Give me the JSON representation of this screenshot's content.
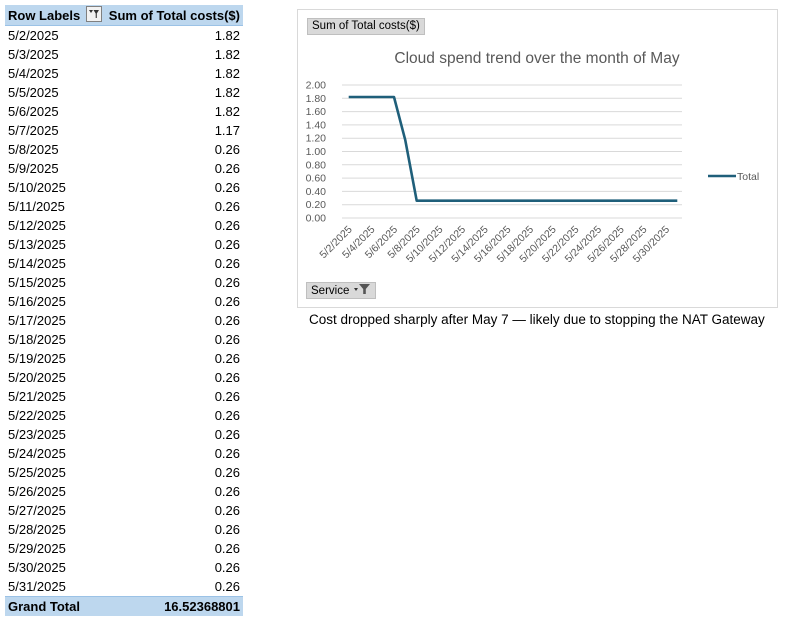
{
  "pivot": {
    "header_row_labels": "Row Labels",
    "header_sum": "Sum of Total costs($)",
    "filter_icon": "filter-dropdown-icon",
    "rows": [
      {
        "date": "5/2/2025",
        "value": "1.82"
      },
      {
        "date": "5/3/2025",
        "value": "1.82"
      },
      {
        "date": "5/4/2025",
        "value": "1.82"
      },
      {
        "date": "5/5/2025",
        "value": "1.82"
      },
      {
        "date": "5/6/2025",
        "value": "1.82"
      },
      {
        "date": "5/7/2025",
        "value": "1.17"
      },
      {
        "date": "5/8/2025",
        "value": "0.26"
      },
      {
        "date": "5/9/2025",
        "value": "0.26"
      },
      {
        "date": "5/10/2025",
        "value": "0.26"
      },
      {
        "date": "5/11/2025",
        "value": "0.26"
      },
      {
        "date": "5/12/2025",
        "value": "0.26"
      },
      {
        "date": "5/13/2025",
        "value": "0.26"
      },
      {
        "date": "5/14/2025",
        "value": "0.26"
      },
      {
        "date": "5/15/2025",
        "value": "0.26"
      },
      {
        "date": "5/16/2025",
        "value": "0.26"
      },
      {
        "date": "5/17/2025",
        "value": "0.26"
      },
      {
        "date": "5/18/2025",
        "value": "0.26"
      },
      {
        "date": "5/19/2025",
        "value": "0.26"
      },
      {
        "date": "5/20/2025",
        "value": "0.26"
      },
      {
        "date": "5/21/2025",
        "value": "0.26"
      },
      {
        "date": "5/22/2025",
        "value": "0.26"
      },
      {
        "date": "5/23/2025",
        "value": "0.26"
      },
      {
        "date": "5/24/2025",
        "value": "0.26"
      },
      {
        "date": "5/25/2025",
        "value": "0.26"
      },
      {
        "date": "5/26/2025",
        "value": "0.26"
      },
      {
        "date": "5/27/2025",
        "value": "0.26"
      },
      {
        "date": "5/28/2025",
        "value": "0.26"
      },
      {
        "date": "5/29/2025",
        "value": "0.26"
      },
      {
        "date": "5/30/2025",
        "value": "0.26"
      },
      {
        "date": "5/31/2025",
        "value": "0.26"
      }
    ],
    "grand_total_label": "Grand Total",
    "grand_total_value": "16.52368801"
  },
  "chart_buttons": {
    "value_field": "Sum of Total costs($)",
    "axis_field": "Service",
    "axis_filter_icon": "filter-icon"
  },
  "chart_data": {
    "type": "line",
    "title": "Cloud spend trend over the month of May",
    "xlabel": "",
    "ylabel": "",
    "ylim": [
      0,
      2
    ],
    "yticks": [
      "0.00",
      "0.20",
      "0.40",
      "0.60",
      "0.80",
      "1.00",
      "1.20",
      "1.40",
      "1.60",
      "1.80",
      "2.00"
    ],
    "categories": [
      "5/2/2025",
      "5/3/2025",
      "5/4/2025",
      "5/5/2025",
      "5/6/2025",
      "5/7/2025",
      "5/8/2025",
      "5/9/2025",
      "5/10/2025",
      "5/11/2025",
      "5/12/2025",
      "5/13/2025",
      "5/14/2025",
      "5/15/2025",
      "5/16/2025",
      "5/17/2025",
      "5/18/2025",
      "5/19/2025",
      "5/20/2025",
      "5/21/2025",
      "5/22/2025",
      "5/23/2025",
      "5/24/2025",
      "5/25/2025",
      "5/26/2025",
      "5/27/2025",
      "5/28/2025",
      "5/29/2025",
      "5/30/2025",
      "5/31/2025"
    ],
    "xtick_labels": [
      "5/2/2025",
      "5/4/2025",
      "5/6/2025",
      "5/8/2025",
      "5/10/2025",
      "5/12/2025",
      "5/14/2025",
      "5/16/2025",
      "5/18/2025",
      "5/20/2025",
      "5/22/2025",
      "5/24/2025",
      "5/26/2025",
      "5/28/2025",
      "5/30/2025"
    ],
    "series": [
      {
        "name": "Total",
        "color": "#1f5f7a",
        "values": [
          1.82,
          1.82,
          1.82,
          1.82,
          1.82,
          1.17,
          0.26,
          0.26,
          0.26,
          0.26,
          0.26,
          0.26,
          0.26,
          0.26,
          0.26,
          0.26,
          0.26,
          0.26,
          0.26,
          0.26,
          0.26,
          0.26,
          0.26,
          0.26,
          0.26,
          0.26,
          0.26,
          0.26,
          0.26,
          0.26
        ]
      }
    ],
    "grid": true,
    "legend": "right"
  },
  "note": "Cost dropped sharply after May 7 — likely due to stopping the NAT Gateway"
}
